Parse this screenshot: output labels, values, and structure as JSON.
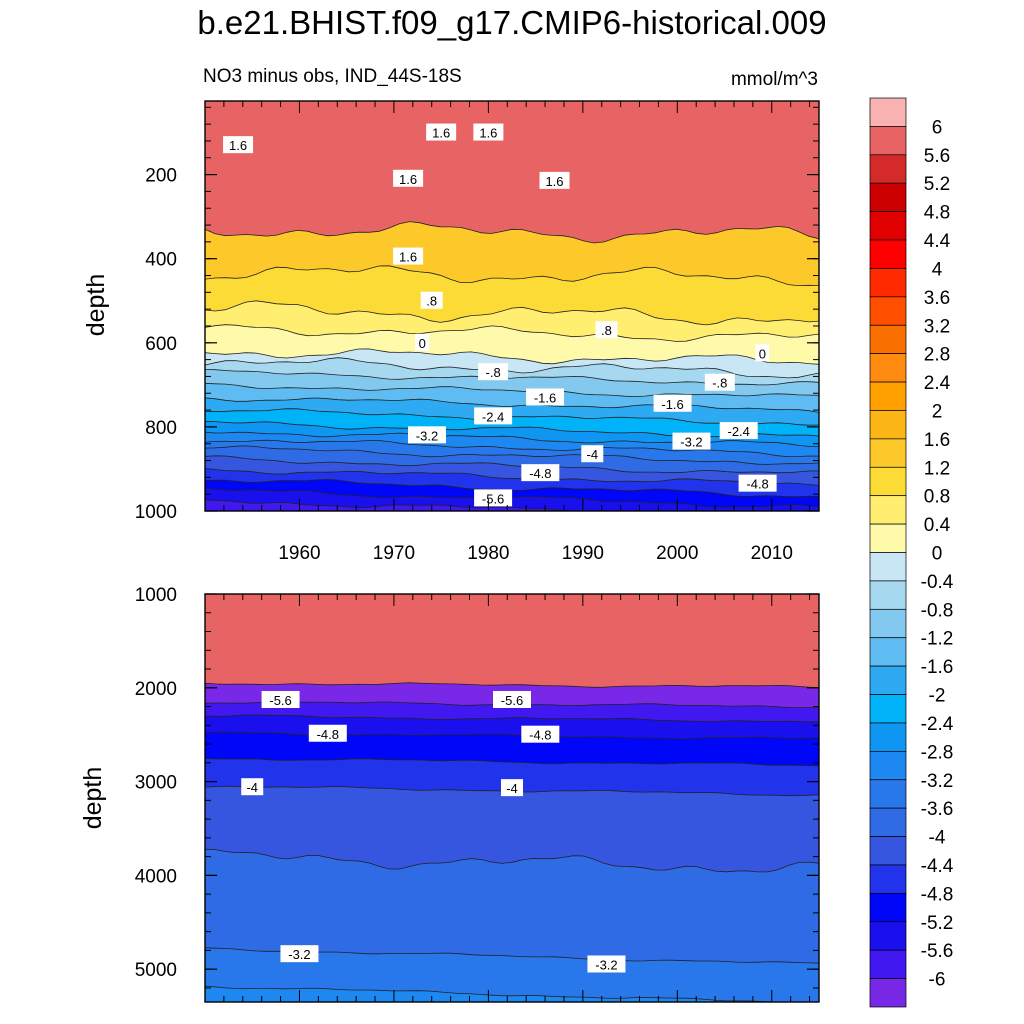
{
  "title": "b.e21.BHIST.f09_g17.CMIP6-historical.009",
  "subtitle_left": "NO3 minus obs, IND_44S-18S",
  "subtitle_right": "mmol/m^3",
  "chart_data": [
    {
      "type": "heatmap",
      "name": "upper-ocean-panel",
      "ylabel": "depth",
      "ylim": [
        1000,
        25
      ],
      "y_ticks": [
        "200",
        "400",
        "600",
        "800",
        "1000"
      ],
      "xlim": [
        1950,
        2015
      ],
      "x_ticks": [
        "1960",
        "1970",
        "1980",
        "1990",
        "2000",
        "2010"
      ],
      "contour_depths": [
        {
          "level": 1.6,
          "depth": 330
        },
        {
          "level": 1.2,
          "depth": 430
        },
        {
          "level": 0.8,
          "depth": 520
        },
        {
          "level": 0.4,
          "depth": 565
        },
        {
          "level": 0.0,
          "depth": 620
        },
        {
          "level": -0.4,
          "depth": 645
        },
        {
          "level": -0.8,
          "depth": 670
        },
        {
          "level": -1.2,
          "depth": 700
        },
        {
          "level": -1.6,
          "depth": 730
        },
        {
          "level": -2.0,
          "depth": 760
        },
        {
          "level": -2.4,
          "depth": 790
        },
        {
          "level": -2.8,
          "depth": 810
        },
        {
          "level": -3.2,
          "depth": 830
        },
        {
          "level": -3.6,
          "depth": 850
        },
        {
          "level": -4.0,
          "depth": 875
        },
        {
          "level": -4.4,
          "depth": 900
        },
        {
          "level": -4.8,
          "depth": 925
        },
        {
          "level": -5.2,
          "depth": 950
        },
        {
          "level": -5.6,
          "depth": 975
        }
      ],
      "labels": [
        {
          "text": "1.6",
          "year": 1975,
          "depth": 100
        },
        {
          "text": "1.6",
          "year": 1980,
          "depth": 100
        },
        {
          "text": "1.6",
          "year": 1953.5,
          "depth": 130
        },
        {
          "text": "1.6",
          "year": 1971.5,
          "depth": 210
        },
        {
          "text": "1.6",
          "year": 1987,
          "depth": 215
        },
        {
          "text": "1.6",
          "year": 1971.5,
          "depth": 395
        },
        {
          "text": ".8",
          "year": 1974,
          "depth": 500
        },
        {
          "text": ".8",
          "year": 1992.5,
          "depth": 570
        },
        {
          "text": "0",
          "year": 1973,
          "depth": 600
        },
        {
          "text": "0",
          "year": 2009,
          "depth": 625
        },
        {
          "text": "-.8",
          "year": 1980.5,
          "depth": 670
        },
        {
          "text": "-.8",
          "year": 2004.5,
          "depth": 695
        },
        {
          "text": "-1.6",
          "year": 1986,
          "depth": 730
        },
        {
          "text": "-1.6",
          "year": 1999.5,
          "depth": 745
        },
        {
          "text": "-2.4",
          "year": 1980.5,
          "depth": 775
        },
        {
          "text": "-2.4",
          "year": 2006.5,
          "depth": 810
        },
        {
          "text": "-3.2",
          "year": 1973.5,
          "depth": 820
        },
        {
          "text": "-3.2",
          "year": 2001.5,
          "depth": 835
        },
        {
          "text": "-4",
          "year": 1991,
          "depth": 865
        },
        {
          "text": "-4.8",
          "year": 1985.5,
          "depth": 910
        },
        {
          "text": "-4.8",
          "year": 2008.5,
          "depth": 935
        },
        {
          "text": "-5.6",
          "year": 1980.5,
          "depth": 970
        }
      ]
    },
    {
      "type": "heatmap",
      "name": "deep-ocean-panel",
      "ylabel": "depth",
      "ylim": [
        5350,
        1000
      ],
      "y_ticks": [
        "1000",
        "2000",
        "3000",
        "4000",
        "5000"
      ],
      "xlim": [
        1950,
        2015
      ],
      "contour_depths": [
        {
          "level": -6.0,
          "depth": 1950
        },
        {
          "level": -5.6,
          "depth": 2150
        },
        {
          "level": -5.2,
          "depth": 2300
        },
        {
          "level": -4.8,
          "depth": 2480
        },
        {
          "level": -4.4,
          "depth": 2750
        },
        {
          "level": -4.0,
          "depth": 3050
        },
        {
          "level": -3.6,
          "depth": 3800
        },
        {
          "level": -3.2,
          "depth": 4780
        },
        {
          "level": -2.8,
          "depth": 5180
        }
      ],
      "labels": [
        {
          "text": "-5.6",
          "year": 1958,
          "depth": 2130
        },
        {
          "text": "-5.6",
          "year": 1982.5,
          "depth": 2130
        },
        {
          "text": "-4.8",
          "year": 1963,
          "depth": 2490
        },
        {
          "text": "-4.8",
          "year": 1985.5,
          "depth": 2500
        },
        {
          "text": "-4",
          "year": 1955,
          "depth": 3060
        },
        {
          "text": "-4",
          "year": 1982.5,
          "depth": 3070
        },
        {
          "text": "-3.2",
          "year": 1960,
          "depth": 4840
        },
        {
          "text": "-3.2",
          "year": 1992.5,
          "depth": 4950
        }
      ]
    }
  ],
  "colorbar": {
    "levels": [
      "6",
      "5.6",
      "5.2",
      "4.8",
      "4.4",
      "4",
      "3.6",
      "3.2",
      "2.8",
      "2.4",
      "2",
      "1.6",
      "1.2",
      "0.8",
      "0.4",
      "0",
      "-0.4",
      "-0.8",
      "-1.2",
      "-1.6",
      "-2",
      "-2.4",
      "-2.8",
      "-3.2",
      "-3.6",
      "-4",
      "-4.4",
      "-4.8",
      "-5.2",
      "-5.6",
      "-6"
    ],
    "colors": [
      "#f8b2b2",
      "#e86464",
      "#d52a2a",
      "#cc0000",
      "#e00000",
      "#ff0000",
      "#ff2a00",
      "#ff5000",
      "#fa7000",
      "#ff8a10",
      "#ffa000",
      "#fbb616",
      "#fdc82a",
      "#fddb36",
      "#ffee70",
      "#fff9aa",
      "#c8e6f4",
      "#a6d8f0",
      "#82c8ef",
      "#5ebcf2",
      "#2eaaf2",
      "#00b2f8",
      "#0e96f2",
      "#1e88f2",
      "#2878ec",
      "#2e6be4",
      "#3656e0",
      "#2233ec",
      "#0006f8",
      "#1a10ee",
      "#4218f0",
      "#7a28e8"
    ]
  }
}
